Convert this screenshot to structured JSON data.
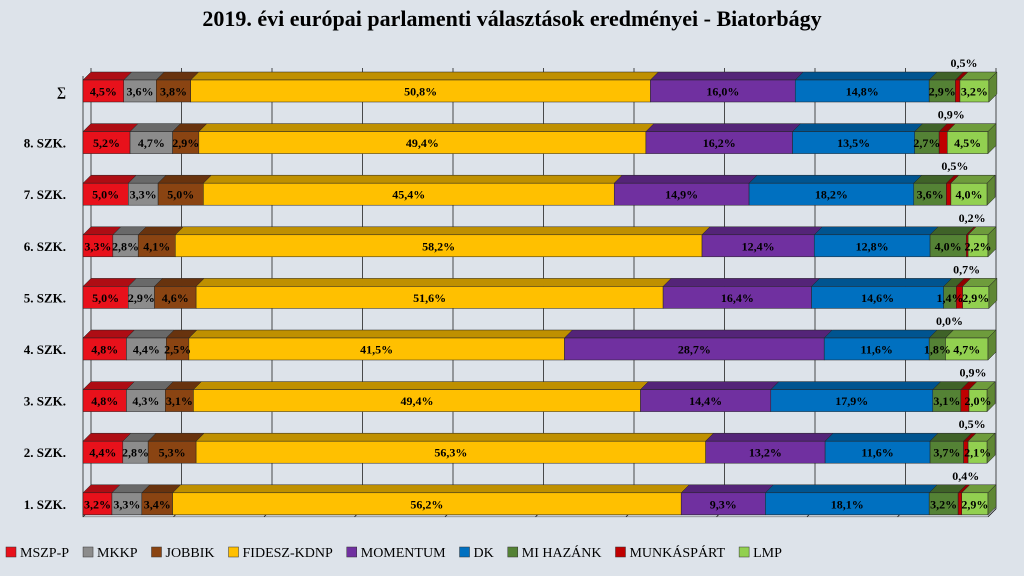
{
  "chart_data": {
    "type": "bar",
    "orientation": "horizontal",
    "stacked": "percent",
    "title": "2019. évi európai parlamenti választások eredményei - Biatorbágy",
    "categories": [
      "∑",
      "8. SZK.",
      "7. SZK.",
      "6. SZK.",
      "5. SZK.",
      "4. SZK.",
      "3. SZK.",
      "2. SZK.",
      "1. SZK."
    ],
    "series": [
      {
        "name": "MSZP-P",
        "color": "#e8111b",
        "values": [
          4.5,
          5.2,
          5.0,
          3.3,
          5.0,
          4.8,
          4.8,
          4.4,
          3.2
        ],
        "labels": [
          "4,5%",
          "5,2%",
          "5,0%",
          "3,3%",
          "5,0%",
          "4,8%",
          "4,8%",
          "4,4%",
          "3,2%"
        ]
      },
      {
        "name": "MKKP",
        "color": "#8c8c8c",
        "values": [
          3.6,
          4.7,
          3.3,
          2.8,
          2.9,
          4.4,
          4.3,
          2.8,
          3.3
        ],
        "labels": [
          "3,6%",
          "4,7%",
          "3,3%",
          "2,8%",
          "2,9%",
          "4,4%",
          "4,3%",
          "2,8%",
          "3,3%"
        ]
      },
      {
        "name": "JOBBIK",
        "color": "#8a4412",
        "values": [
          3.8,
          2.9,
          5.0,
          4.1,
          4.6,
          2.5,
          3.1,
          5.3,
          3.4
        ],
        "labels": [
          "3,8%",
          "2,9%",
          "5,0%",
          "4,1%",
          "4,6%",
          "2,5%",
          "3,1%",
          "5,3%",
          "3,4%"
        ]
      },
      {
        "name": "FIDESZ-KDNP",
        "color": "#ffc000",
        "values": [
          50.8,
          49.4,
          45.4,
          58.2,
          51.6,
          41.5,
          49.4,
          56.3,
          56.2
        ],
        "labels": [
          "50,8%",
          "49,4%",
          "45,4%",
          "58,2%",
          "51,6%",
          "41,5%",
          "49,4%",
          "56,3%",
          "56,2%"
        ]
      },
      {
        "name": "MOMENTUM",
        "color": "#7030a0",
        "values": [
          16.0,
          16.2,
          14.9,
          12.4,
          16.4,
          28.7,
          14.4,
          13.2,
          9.3
        ],
        "labels": [
          "16,0%",
          "16,2%",
          "14,9%",
          "12,4%",
          "16,4%",
          "28,7%",
          "14,4%",
          "13,2%",
          "9,3%"
        ]
      },
      {
        "name": "DK",
        "color": "#0070c0",
        "values": [
          14.8,
          13.5,
          18.2,
          12.8,
          14.6,
          11.6,
          17.9,
          11.6,
          18.1
        ],
        "labels": [
          "14,8%",
          "13,5%",
          "18,2%",
          "12,8%",
          "14,6%",
          "11,6%",
          "17,9%",
          "11,6%",
          "18,1%"
        ]
      },
      {
        "name": "MI HAZÁNK",
        "color": "#548235",
        "values": [
          2.9,
          2.7,
          3.6,
          4.0,
          1.4,
          1.8,
          3.1,
          3.7,
          3.2
        ],
        "labels": [
          "2,9%",
          "2,7%",
          "3,6%",
          "4,0%",
          "1,4%",
          "1,8%",
          "3,1%",
          "3,7%",
          "3,2%"
        ]
      },
      {
        "name": "MUNKÁSPÁRT",
        "color": "#c00000",
        "values": [
          0.5,
          0.9,
          0.5,
          0.2,
          0.7,
          0.0,
          0.9,
          0.5,
          0.4
        ],
        "labels": [
          "0,5%",
          "0,9%",
          "0,5%",
          "0,2%",
          "0,7%",
          "0,0%",
          "0,9%",
          "0,5%",
          "0,4%"
        ]
      },
      {
        "name": "LMP",
        "color": "#92d050",
        "values": [
          3.2,
          4.5,
          4.0,
          2.2,
          2.9,
          4.7,
          2.0,
          2.1,
          2.9
        ],
        "labels": [
          "3,2%",
          "4,5%",
          "4,0%",
          "2,2%",
          "2,9%",
          "4,7%",
          "2,0%",
          "2,1%",
          "2,9%"
        ]
      }
    ],
    "xlim": [
      0,
      100
    ],
    "grid": true,
    "legend_position": "bottom"
  }
}
